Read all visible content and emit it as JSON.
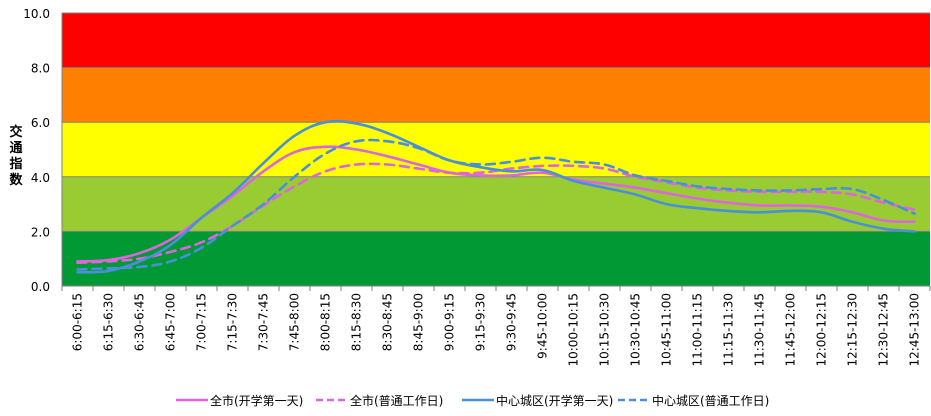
{
  "chart_data": {
    "type": "line",
    "title": "",
    "ylabel": "交通指数",
    "xlabel": "",
    "ylim": [
      0,
      10
    ],
    "yticks": [
      "0.0",
      "2.0",
      "4.0",
      "6.0",
      "8.0",
      "10.0"
    ],
    "bands": [
      {
        "from": 0,
        "to": 2,
        "color": "#009933"
      },
      {
        "from": 2,
        "to": 4,
        "color": "#99cc33"
      },
      {
        "from": 4,
        "to": 6,
        "color": "#ffff00"
      },
      {
        "from": 6,
        "to": 8,
        "color": "#ff7f00"
      },
      {
        "from": 8,
        "to": 10,
        "color": "#ff0000"
      }
    ],
    "categories": [
      "6:00-6:15",
      "6:15-6:30",
      "6:30-6:45",
      "6:45-7:00",
      "7:00-7:15",
      "7:15-7:30",
      "7:30-7:45",
      "7:45-8:00",
      "8:00-8:15",
      "8:15-8:30",
      "8:30-8:45",
      "8:45-9:00",
      "9:00-9:15",
      "9:15-9:30",
      "9:30-9:45",
      "9:45-10:00",
      "10:00-10:15",
      "10:15-10:30",
      "10:30-10:45",
      "10:45-11:00",
      "11:00-11:15",
      "11:15-11:30",
      "11:30-11:45",
      "11:45-12:00",
      "12:00-12:15",
      "12:15-12:30",
      "12:30-12:45",
      "12:45-13:00"
    ],
    "series": [
      {
        "name": "全市(开学第一天)",
        "color": "#dd66dd",
        "dash": false,
        "values": [
          0.9,
          0.95,
          1.2,
          1.7,
          2.5,
          3.3,
          4.2,
          4.9,
          5.1,
          5.0,
          4.75,
          4.45,
          4.15,
          4.05,
          4.05,
          4.15,
          3.9,
          3.75,
          3.6,
          3.4,
          3.2,
          3.05,
          2.95,
          2.95,
          2.9,
          2.7,
          2.4,
          2.35
        ]
      },
      {
        "name": "全市(普通工作日)",
        "color": "#dd66dd",
        "dash": true,
        "values": [
          0.85,
          0.9,
          1.0,
          1.25,
          1.6,
          2.2,
          2.95,
          3.65,
          4.2,
          4.45,
          4.45,
          4.3,
          4.15,
          4.15,
          4.3,
          4.4,
          4.4,
          4.3,
          4.0,
          3.8,
          3.6,
          3.5,
          3.45,
          3.45,
          3.45,
          3.35,
          3.05,
          2.8
        ]
      },
      {
        "name": "中心城区(开学第一天)",
        "color": "#4a8fd9",
        "dash": false,
        "values": [
          0.5,
          0.55,
          0.9,
          1.5,
          2.5,
          3.4,
          4.5,
          5.5,
          6.0,
          5.95,
          5.6,
          5.1,
          4.6,
          4.35,
          4.2,
          4.25,
          3.85,
          3.6,
          3.35,
          3.0,
          2.85,
          2.75,
          2.7,
          2.75,
          2.7,
          2.35,
          2.1,
          2.0
        ]
      },
      {
        "name": "中心城区(普通工作日)",
        "color": "#4a8fd9",
        "dash": true,
        "values": [
          0.6,
          0.65,
          0.7,
          0.9,
          1.4,
          2.2,
          3.0,
          4.0,
          4.85,
          5.3,
          5.3,
          5.05,
          4.6,
          4.45,
          4.55,
          4.7,
          4.55,
          4.45,
          4.05,
          3.85,
          3.65,
          3.55,
          3.5,
          3.5,
          3.55,
          3.55,
          3.15,
          2.65
        ]
      }
    ],
    "legend_position": "bottom"
  }
}
